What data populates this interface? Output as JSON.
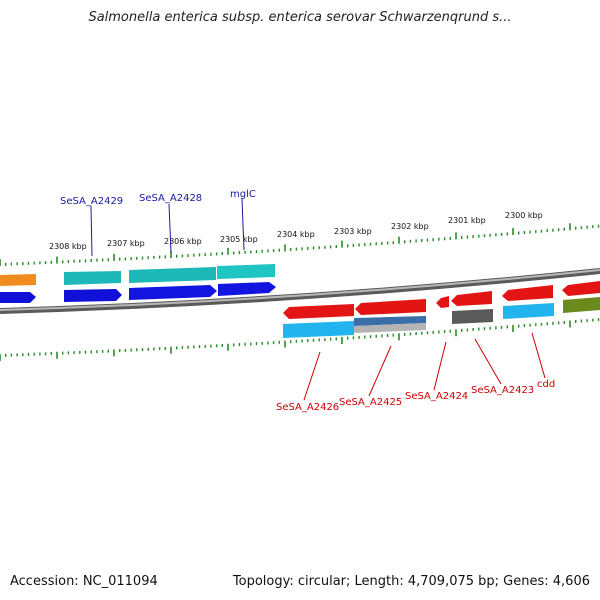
{
  "header": {
    "title": "Salmonella enterica subsp. enterica serovar Schwarzenqrund s..."
  },
  "footer": {
    "accession": "Accession: NC_011094",
    "stats": "Topology: circular; Length: 4,709,075 bp; Genes: 4,606"
  },
  "scale_labels": [
    "2308 kbp",
    "2307 kbp",
    "2306 kbp",
    "2305 kbp",
    "2304 kbp",
    "2303 kbp",
    "2302 kbp",
    "2301 kbp",
    "2300 kbp"
  ],
  "gene_labels_top": [
    "SeSA_A2429",
    "SeSA_A2428",
    "mglC"
  ],
  "gene_labels_bottom": [
    "SeSA_A2426",
    "SeSA_A2425",
    "SeSA_A2424",
    "SeSA_A2423",
    "cdd"
  ],
  "colors": {
    "label_top": "#1a1aa0",
    "label_bottom": "#cc0000",
    "tick": "#2a8a2a",
    "backbone": "#8a8a8a"
  }
}
